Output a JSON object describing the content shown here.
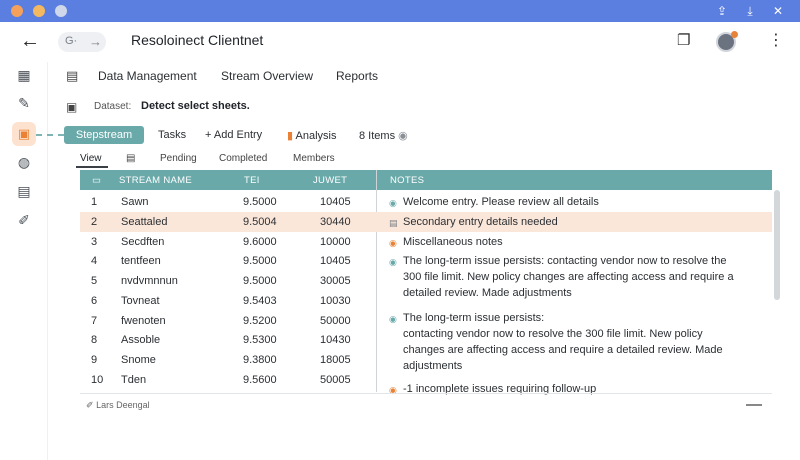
{
  "titlebar": {
    "icons": [
      "share-icon",
      "download-icon",
      "close-icon"
    ],
    "colors": {
      "bar": "#5a7fe0"
    }
  },
  "header": {
    "nav_label": "G·",
    "forward_glyph": "→",
    "back_glyph": "←",
    "title": "Resoloinect Clientnet"
  },
  "menu": {
    "items": [
      "Data Management",
      "Stream Overview",
      "Reports"
    ]
  },
  "dataset": {
    "label": "Dataset:",
    "value": "Detect select sheets."
  },
  "toolbar": {
    "stepstream": "Stepstream",
    "tasks": "Tasks",
    "add_entry": "+ Add Entry",
    "analysis": "Analysis",
    "items": "8 Items"
  },
  "subtabs": {
    "view": "View",
    "pending": "Pending",
    "completed": "Completed",
    "members": "Members"
  },
  "table": {
    "headers": {
      "name": "STREAM NAME",
      "tei": "TEI",
      "juwet": "JUWET",
      "notes": "NOTES"
    },
    "rows": [
      {
        "num": "1",
        "name": "Sawn",
        "tei": "9.5000",
        "juwet": "10405"
      },
      {
        "num": "2",
        "name": "Seattaled",
        "tei": "9.5004",
        "juwet": "30440"
      },
      {
        "num": "3",
        "name": "Secdften",
        "tei": "9.6000",
        "juwet": "10000"
      },
      {
        "num": "4",
        "name": "tentfeen",
        "tei": "9.5000",
        "juwet": "10405"
      },
      {
        "num": "5",
        "name": "nvdvmnnun",
        "tei": "9.5000",
        "juwet": "30005"
      },
      {
        "num": "6",
        "name": "Tovneat",
        "tei": "9.5403",
        "juwet": "10030"
      },
      {
        "num": "7",
        "name": "fwenoten",
        "tei": "9.5200",
        "juwet": "50000"
      },
      {
        "num": "8",
        "name": "Assoble",
        "tei": "9.5300",
        "juwet": "10430"
      },
      {
        "num": "9",
        "name": "Snome",
        "tei": "9.3800",
        "juwet": "18005"
      },
      {
        "num": "10",
        "name": "Tden",
        "tei": "9.5600",
        "juwet": "50005"
      }
    ],
    "notes": [
      {
        "text": "Welcome entry. Please review all details",
        "color": "#6aa9a9"
      },
      {
        "text": "Secondary entry details needed",
        "color": "#7a7f86"
      },
      {
        "text": "Miscellaneous notes",
        "color": "#e98236"
      },
      {
        "lines": [
          "The long-term issue persists: contacting vendor now to resolve the",
          "300 file limit. New policy changes are affecting access and require a",
          "detailed review. Made adjustments"
        ],
        "color": "#6aa9a9"
      },
      {
        "lines": [
          "The long-term issue persists:",
          "contacting vendor now to resolve the 300 file limit. New policy",
          "changes are affecting access and require a detailed review. Made",
          "adjustments"
        ],
        "color": "#6aa9a9"
      },
      {
        "text": "-1 incomplete issues requiring follow-up",
        "color": "#e98236"
      }
    ]
  },
  "footer": {
    "user": "Lars Deengal"
  },
  "colors": {
    "accent": "#6aa9a9",
    "highlight_row": "#fbe7da",
    "orange": "#e98236"
  }
}
